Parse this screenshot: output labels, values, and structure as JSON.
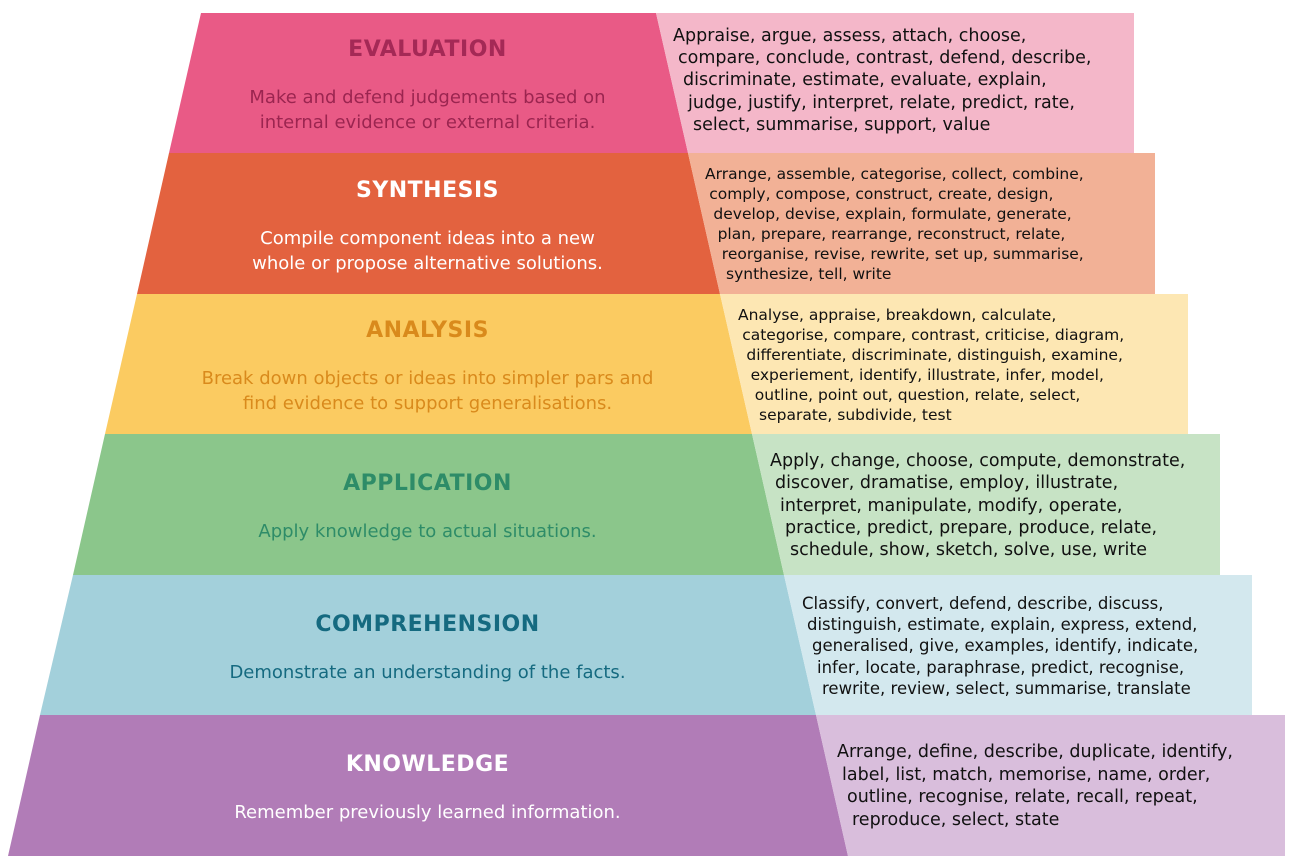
{
  "levels": [
    {
      "title": "EVALUATION",
      "description": [
        "Make and defend judgements based on",
        "internal evidence or external criteria."
      ],
      "verbs": [
        "Appraise, argue, assess, attach, choose,",
        "compare, conclude, contrast, defend, describe,",
        "discriminate, estimate, evaluate, explain,",
        "judge, justify, interpret, relate, predict, rate,",
        "select, summarise, support, value"
      ],
      "colors": {
        "band": "#E95A86",
        "verbs_bg": "#F4B7C9",
        "title": "#A42956",
        "desc": "#9B2550"
      }
    },
    {
      "title": "SYNTHESIS",
      "description": [
        "Compile component ideas into a new",
        "whole or propose alternative solutions."
      ],
      "verbs": [
        "Arrange, assemble, categorise, collect, combine,",
        "comply, compose, construct, create, design,",
        "develop, devise, explain, formulate, generate,",
        "plan, prepare, rearrange, reconstruct, relate,",
        "reorganise, revise, rewrite, set up, summarise,",
        "synthesize, tell, write"
      ],
      "colors": {
        "band": "#E3623F",
        "verbs_bg": "#F2B196",
        "title": "#FFFFFF",
        "desc": "#FFFFFF"
      }
    },
    {
      "title": "ANALYSIS",
      "description": [
        "Break down objects or ideas into simpler pars and",
        "find evidence to support generalisations."
      ],
      "verbs": [
        "Analyse, appraise, breakdown, calculate,",
        "categorise, compare, contrast, criticise, diagram,",
        "differentiate, discriminate, distinguish, examine,",
        "experiement, identify, illustrate, infer, model,",
        "outline, point out, question, relate, select,",
        "separate, subdivide, test"
      ],
      "colors": {
        "band": "#FBCB61",
        "verbs_bg": "#FDE7B3",
        "title": "#D98A1C",
        "desc": "#D98A1C"
      }
    },
    {
      "title": "APPLICATION",
      "description": [
        "Apply knowledge to actual situations."
      ],
      "verbs": [
        "Apply, change, choose, compute, demonstrate,",
        "discover, dramatise, employ, illustrate,",
        "interpret, manipulate, modify, operate,",
        "practice, predict, prepare, produce, relate,",
        "schedule, show, sketch, solve, use, write"
      ],
      "colors": {
        "band": "#8BC68B",
        "verbs_bg": "#C7E3C5",
        "title": "#2E8C68",
        "desc": "#2E8C68"
      }
    },
    {
      "title": "COMPREHENSION",
      "description": [
        "Demonstrate an understanding of the facts."
      ],
      "verbs": [
        "Classify, convert, defend, describe, discuss,",
        "distinguish, estimate, explain, express, extend,",
        "generalised, give, examples, identify, indicate,",
        "infer, locate, paraphrase, predict, recognise,",
        "rewrite, review, select, summarise, translate"
      ],
      "colors": {
        "band": "#A3D0DB",
        "verbs_bg": "#D3E8EE",
        "title": "#156A80",
        "desc": "#156A80"
      }
    },
    {
      "title": "KNOWLEDGE",
      "description": [
        "Remember previously learned information."
      ],
      "verbs": [
        "Arrange, define, describe, duplicate, identify,",
        "label, list, match, memorise, name, order,",
        "outline, recognise, relate, recall, repeat,",
        "reproduce, select, state"
      ],
      "colors": {
        "band": "#B17CB7",
        "verbs_bg": "#D9BEDC",
        "title": "#FFFFFF",
        "desc": "#FFFFFF"
      }
    }
  ]
}
